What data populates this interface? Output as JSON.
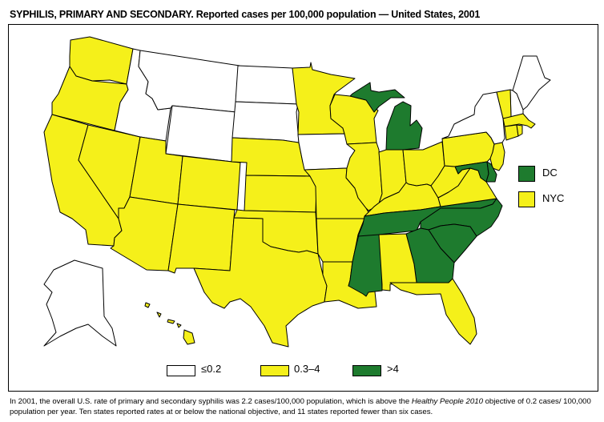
{
  "title": {
    "bold": "SYPHILIS, PRIMARY AND SECONDARY.",
    "rest": "Reported cases per 100,000 population — United States, 2001"
  },
  "legend": [
    {
      "label": "≤0.2",
      "color": "#ffffff"
    },
    {
      "label": "0.3–4",
      "color": "#f5f01a"
    },
    {
      "label": ">4",
      "color": "#1e7b2e"
    }
  ],
  "insets": [
    {
      "label": "DC",
      "category": 2
    },
    {
      "label": "NYC",
      "category": 1
    }
  ],
  "state_categories": {
    "WA": 1,
    "OR": 1,
    "CA": 1,
    "NV": 1,
    "ID": 0,
    "MT": 0,
    "WY": 0,
    "UT": 1,
    "CO": 1,
    "AZ": 1,
    "NM": 1,
    "ND": 0,
    "SD": 0,
    "NE": 1,
    "KS": 1,
    "OK": 1,
    "TX": 1,
    "MN": 1,
    "IA": 0,
    "MO": 1,
    "AR": 1,
    "LA": 1,
    "WI": 1,
    "IL": 1,
    "MI": 2,
    "IN": 1,
    "OH": 1,
    "KY": 1,
    "TN": 2,
    "MS": 2,
    "AL": 1,
    "GA": 2,
    "FL": 1,
    "SC": 2,
    "NC": 2,
    "VA": 1,
    "WV": 1,
    "MD": 2,
    "DE": 2,
    "PA": 1,
    "NJ": 1,
    "NY": 0,
    "CT": 1,
    "RI": 1,
    "MA": 1,
    "VT": 1,
    "NH": 0,
    "ME": 0,
    "AK": 0,
    "HI": 1
  },
  "footer": {
    "part1": "In 2001, the overall U.S. rate of primary and secondary syphilis was 2.2 cases/100,000 population, which is above the ",
    "italic": "Healthy People 2010",
    "part2": " objective of 0.2 cases/ 100,000 population per year. Ten states reported rates at or below the national objective, and 11 states reported fewer than six cases."
  }
}
